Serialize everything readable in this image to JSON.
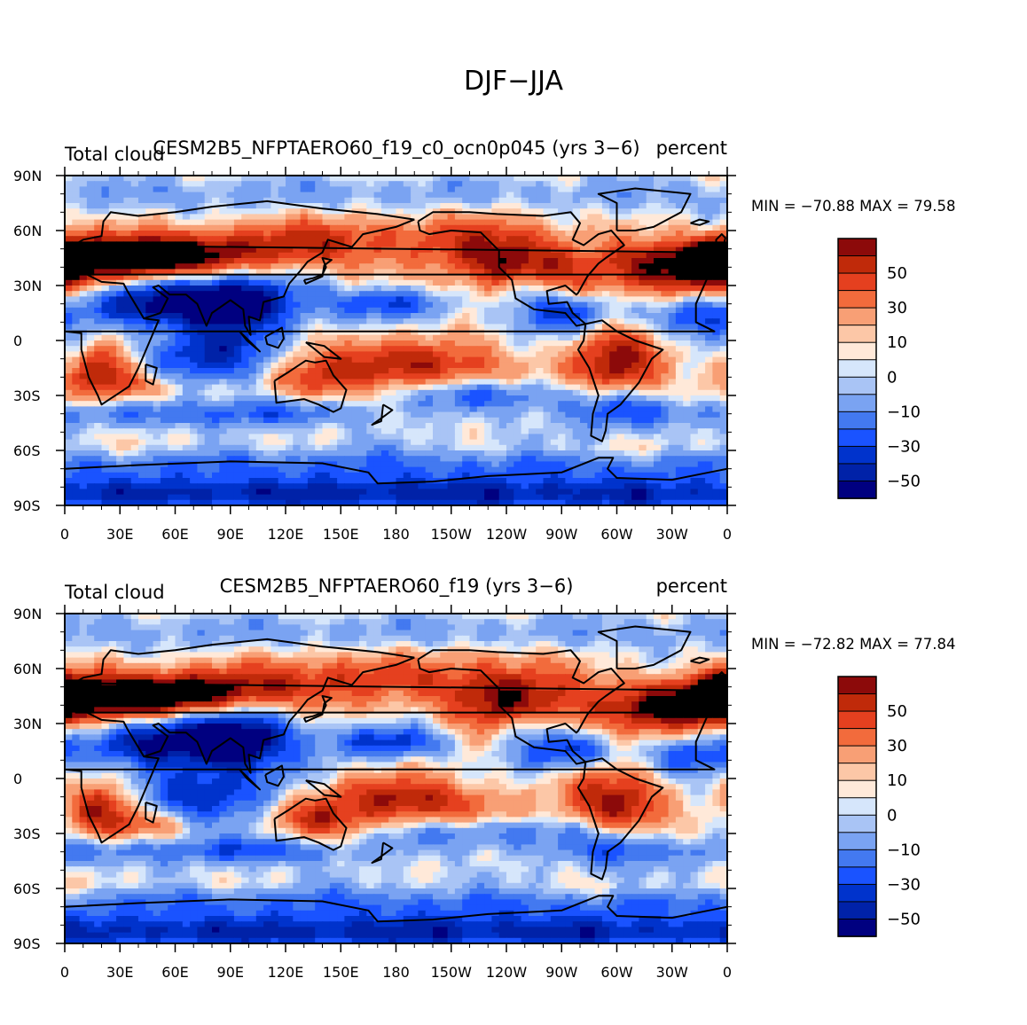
{
  "figure_title": "DJF−JJA",
  "chart_data": [
    {
      "type": "heatmap",
      "panel": "top",
      "title": "CESM2B5_NFPTAERO60_f19_c0_ocn0p045 (yrs 3−6)",
      "left_label": "Total cloud",
      "right_label": "percent",
      "stats_text": "MIN = −70.88  MAX =   79.58",
      "min": -70.88,
      "max": 79.58,
      "x_ticks": [
        "0",
        "30E",
        "60E",
        "90E",
        "120E",
        "150E",
        "180",
        "150W",
        "120W",
        "90W",
        "60W",
        "30W",
        "0"
      ],
      "y_ticks": [
        "90N",
        "60N",
        "30N",
        "0",
        "30S",
        "60S",
        "90S"
      ],
      "xlim": [
        0,
        360
      ],
      "ylim": [
        -90,
        90
      ],
      "contour_levels": [
        -60,
        -50,
        -40,
        -30,
        -20,
        -10,
        -5,
        0,
        5,
        10,
        20,
        30,
        40,
        50,
        60
      ],
      "colorbar_labels": [
        "50",
        "30",
        "10",
        "0",
        "−10",
        "−30",
        "−50"
      ]
    },
    {
      "type": "heatmap",
      "panel": "bottom",
      "title": "CESM2B5_NFPTAERO60_f19 (yrs 3−6)",
      "left_label": "Total cloud",
      "right_label": "percent",
      "stats_text": "MIN = −72.82  MAX =   77.84",
      "min": -72.82,
      "max": 77.84,
      "x_ticks": [
        "0",
        "30E",
        "60E",
        "90E",
        "120E",
        "150E",
        "180",
        "150W",
        "120W",
        "90W",
        "60W",
        "30W",
        "0"
      ],
      "y_ticks": [
        "90N",
        "60N",
        "30N",
        "0",
        "30S",
        "60S",
        "90S"
      ],
      "xlim": [
        0,
        360
      ],
      "ylim": [
        -90,
        90
      ],
      "contour_levels": [
        -60,
        -50,
        -40,
        -30,
        -20,
        -10,
        -5,
        0,
        5,
        10,
        20,
        30,
        40,
        50,
        60
      ],
      "colorbar_labels": [
        "50",
        "30",
        "10",
        "0",
        "−10",
        "−30",
        "−50"
      ]
    }
  ],
  "palette": [
    "#000080",
    "#0022a8",
    "#0033cc",
    "#1a53ff",
    "#4379f0",
    "#7aa3f2",
    "#a9c4f5",
    "#d6e6fb",
    "#ffe9d9",
    "#fcc7a7",
    "#f89f75",
    "#f26b3c",
    "#e5401f",
    "#c02a0a",
    "#8c0a0a"
  ]
}
